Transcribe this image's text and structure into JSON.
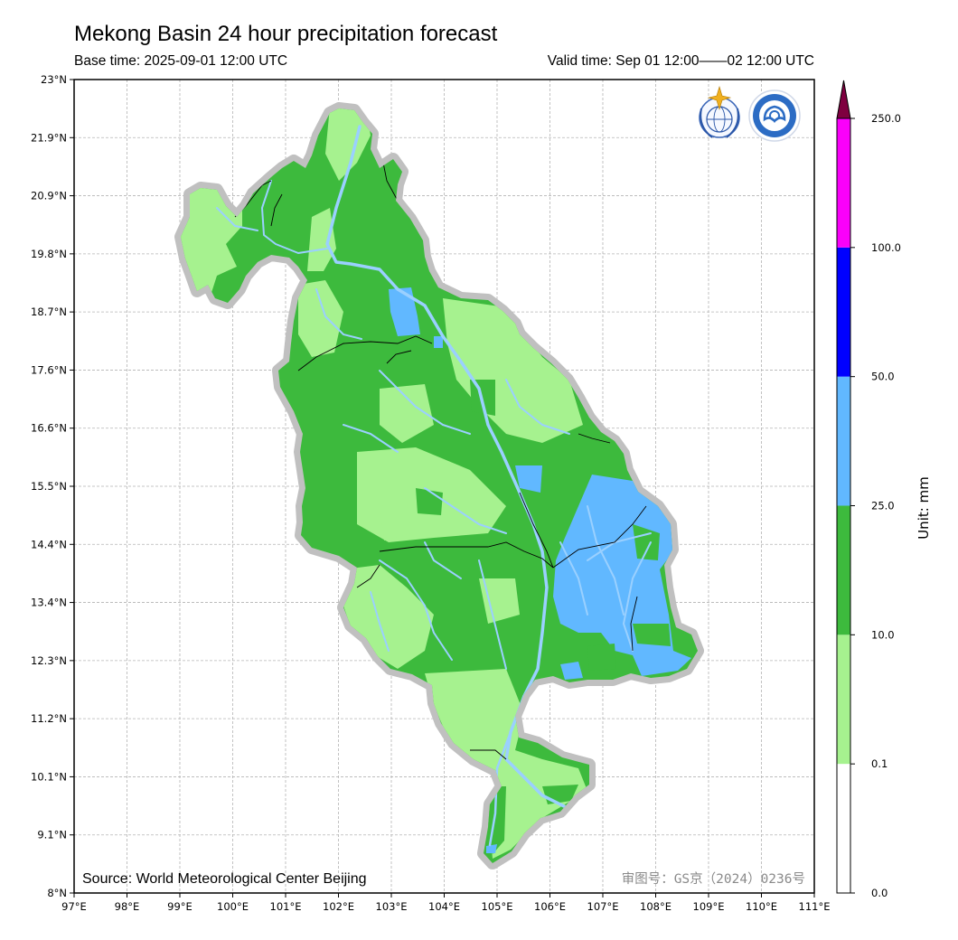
{
  "header": {
    "title": "Mekong Basin 24 hour precipitation forecast",
    "base_time": "Base time: 2025-09-01 12:00 UTC",
    "valid_time": "Valid time: Sep 01 12:00——02 12:00 UTC"
  },
  "map": {
    "x_ticks": [
      "97°E",
      "98°E",
      "99°E",
      "100°E",
      "101°E",
      "102°E",
      "103°E",
      "104°E",
      "105°E",
      "106°E",
      "107°E",
      "108°E",
      "109°E",
      "110°E",
      "111°E"
    ],
    "y_ticks": [
      "23°N",
      "21.9°N",
      "20.9°N",
      "19.8°N",
      "18.7°N",
      "17.6°N",
      "16.6°N",
      "15.5°N",
      "14.4°N",
      "13.4°N",
      "12.3°N",
      "11.2°N",
      "10.1°N",
      "9.1°N",
      "8°N"
    ],
    "source": "Source: World Meteorological Center Beijing",
    "approval": "审图号：GS京（2024）0236号",
    "grid": true
  },
  "colorbar": {
    "unit": "Unit: mm",
    "levels": [
      "0.0",
      "0.1",
      "10.0",
      "25.0",
      "50.0",
      "100.0",
      "250.0"
    ],
    "colors": [
      "#ffffff",
      "#a6f28f",
      "#3dba3d",
      "#61b8ff",
      "#0000ff",
      "#fa00fa",
      "#7f0040"
    ]
  },
  "legend_colors": {
    "boundary_halo": "#c0c0c0",
    "rivers": "#9ad0ff",
    "border_lines": "#000000"
  }
}
